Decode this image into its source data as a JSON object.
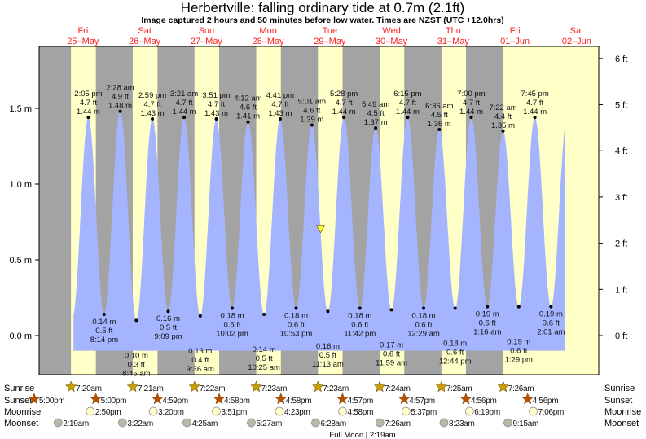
{
  "chart_data": {
    "type": "area",
    "title": "Herbertville: falling  ordinary tide at 0.7m (2.1ft)",
    "subtitle": "Image captured 2 hours and 50 minutes before low water. Times are NZST (UTC +12.0hrs)",
    "days": [
      {
        "name": "Fri",
        "date": "25–May"
      },
      {
        "name": "Sat",
        "date": "26–May"
      },
      {
        "name": "Sun",
        "date": "27–May"
      },
      {
        "name": "Mon",
        "date": "28–May"
      },
      {
        "name": "Tue",
        "date": "29–May"
      },
      {
        "name": "Wed",
        "date": "30–May"
      },
      {
        "name": "Thu",
        "date": "31–May"
      },
      {
        "name": "Fri",
        "date": "01–Jun"
      },
      {
        "name": "Sat",
        "date": "02–Jun"
      }
    ],
    "y_left": {
      "unit": "m",
      "ticks": [
        "0.0 m",
        "0.5 m",
        "1.0 m",
        "1.5 m"
      ],
      "values": [
        0,
        0.5,
        1.0,
        1.5
      ]
    },
    "y_right": {
      "unit": "ft",
      "ticks": [
        "0 ft",
        "1 ft",
        "2 ft",
        "3 ft",
        "4 ft",
        "5 ft",
        "6 ft"
      ],
      "values": [
        0,
        1,
        2,
        3,
        4,
        5,
        6
      ]
    },
    "current": {
      "day": 4,
      "time": "8:23 am",
      "height_m": 0.7,
      "height_ft": 2.1,
      "state": "falling"
    },
    "extremes": [
      {
        "day": 0,
        "type": "high",
        "time": "2:05 pm",
        "ft": "4.7 ft",
        "m": "1.44 m",
        "value": 1.44
      },
      {
        "day": 0,
        "type": "low",
        "time": "8:14 pm",
        "ft": "0.5 ft",
        "m": "0.14 m",
        "value": 0.14
      },
      {
        "day": 1,
        "type": "high",
        "time": "2:28 am",
        "ft": "4.9 ft",
        "m": "1.48 m",
        "value": 1.48
      },
      {
        "day": 1,
        "type": "low",
        "time": "8:45 am",
        "ft": "0.3 ft",
        "m": "0.10 m",
        "value": 0.1
      },
      {
        "day": 1,
        "type": "high",
        "time": "2:59 pm",
        "ft": "4.7 ft",
        "m": "1.43 m",
        "value": 1.43
      },
      {
        "day": 1,
        "type": "low",
        "time": "9:09 pm",
        "ft": "0.5 ft",
        "m": "0.16 m",
        "value": 0.16
      },
      {
        "day": 2,
        "type": "high",
        "time": "3:21 am",
        "ft": "4.7 ft",
        "m": "1.44 m",
        "value": 1.44
      },
      {
        "day": 2,
        "type": "low",
        "time": "9:36 am",
        "ft": "0.4 ft",
        "m": "0.13 m",
        "value": 0.13
      },
      {
        "day": 2,
        "type": "high",
        "time": "3:51 pm",
        "ft": "4.7 ft",
        "m": "1.43 m",
        "value": 1.43
      },
      {
        "day": 2,
        "type": "low",
        "time": "10:02 pm",
        "ft": "0.6 ft",
        "m": "0.18 m",
        "value": 0.18
      },
      {
        "day": 3,
        "type": "high",
        "time": "4:12 am",
        "ft": "4.6 ft",
        "m": "1.41 m",
        "value": 1.41
      },
      {
        "day": 3,
        "type": "low",
        "time": "10:25 am",
        "ft": "0.5 ft",
        "m": "0.14 m",
        "value": 0.14
      },
      {
        "day": 3,
        "type": "high",
        "time": "4:41 pm",
        "ft": "4.7 ft",
        "m": "1.43 m",
        "value": 1.43
      },
      {
        "day": 3,
        "type": "low",
        "time": "10:53 pm",
        "ft": "0.6 ft",
        "m": "0.18 m",
        "value": 0.18
      },
      {
        "day": 4,
        "type": "high",
        "time": "5:01 am",
        "ft": "4.6 ft",
        "m": "1.39 m",
        "value": 1.39
      },
      {
        "day": 4,
        "type": "low",
        "time": "11:13 am",
        "ft": "0.5 ft",
        "m": "0.16 m",
        "value": 0.16
      },
      {
        "day": 4,
        "type": "high",
        "time": "5:28 pm",
        "ft": "4.7 ft",
        "m": "1.44 m",
        "value": 1.44
      },
      {
        "day": 4,
        "type": "low",
        "time": "11:42 pm",
        "ft": "0.6 ft",
        "m": "0.18 m",
        "value": 0.18
      },
      {
        "day": 5,
        "type": "high",
        "time": "5:49 am",
        "ft": "4.5 ft",
        "m": "1.37 m",
        "value": 1.37
      },
      {
        "day": 5,
        "type": "low",
        "time": "11:59 am",
        "ft": "0.6 ft",
        "m": "0.17 m",
        "value": 0.17
      },
      {
        "day": 5,
        "type": "high",
        "time": "6:15 pm",
        "ft": "4.7 ft",
        "m": "1.44 m",
        "value": 1.44
      },
      {
        "day": 6,
        "type": "low",
        "time": "12:29 am",
        "ft": "0.6 ft",
        "m": "0.18 m",
        "value": 0.18
      },
      {
        "day": 6,
        "type": "high",
        "time": "6:36 am",
        "ft": "4.5 ft",
        "m": "1.36 m",
        "value": 1.36
      },
      {
        "day": 6,
        "type": "low",
        "time": "12:44 pm",
        "ft": "0.6 ft",
        "m": "0.18 m",
        "value": 0.18
      },
      {
        "day": 6,
        "type": "high",
        "time": "7:00 pm",
        "ft": "4.7 ft",
        "m": "1.44 m",
        "value": 1.44
      },
      {
        "day": 7,
        "type": "low",
        "time": "1:16 am",
        "ft": "0.6 ft",
        "m": "0.19 m",
        "value": 0.19
      },
      {
        "day": 7,
        "type": "high",
        "time": "7:22 am",
        "ft": "4.4 ft",
        "m": "1.35 m",
        "value": 1.35
      },
      {
        "day": 7,
        "type": "low",
        "time": "1:29 pm",
        "ft": "0.6 ft",
        "m": "0.19 m",
        "value": 0.19
      },
      {
        "day": 7,
        "type": "high",
        "time": "7:45 pm",
        "ft": "4.7 ft",
        "m": "1.44 m",
        "value": 1.44
      },
      {
        "day": 8,
        "type": "low",
        "time": "2:01 am",
        "ft": "0.6 ft",
        "m": "0.19 m",
        "value": 0.19
      }
    ],
    "rows": {
      "sunrise_label": "Sunrise",
      "sunset_label": "Sunset",
      "moonrise_label": "Moonrise",
      "moonset_label": "Moonset",
      "sunrise": [
        {
          "day": 0,
          "time": "7:20am"
        },
        {
          "day": 1,
          "time": "7:21am"
        },
        {
          "day": 2,
          "time": "7:22am"
        },
        {
          "day": 3,
          "time": "7:23am"
        },
        {
          "day": 4,
          "time": "7:23am"
        },
        {
          "day": 5,
          "time": "7:24am"
        },
        {
          "day": 6,
          "time": "7:25am"
        },
        {
          "day": 7,
          "time": "7:26am"
        }
      ],
      "sunset": [
        {
          "day": -1,
          "time": "5:00pm"
        },
        {
          "day": 0,
          "time": "5:00pm"
        },
        {
          "day": 1,
          "time": "4:59pm"
        },
        {
          "day": 2,
          "time": "4:58pm"
        },
        {
          "day": 3,
          "time": "4:58pm"
        },
        {
          "day": 4,
          "time": "4:57pm"
        },
        {
          "day": 5,
          "time": "4:57pm"
        },
        {
          "day": 6,
          "time": "4:56pm"
        },
        {
          "day": 7,
          "time": "4:56pm"
        }
      ],
      "moonrise": [
        {
          "day": 0,
          "time": "2:50pm"
        },
        {
          "day": 1,
          "time": "3:20pm"
        },
        {
          "day": 2,
          "time": "3:51pm"
        },
        {
          "day": 3,
          "time": "4:23pm"
        },
        {
          "day": 4,
          "time": "4:58pm"
        },
        {
          "day": 5,
          "time": "5:37pm"
        },
        {
          "day": 6,
          "time": "6:19pm"
        },
        {
          "day": 7,
          "time": "7:06pm"
        }
      ],
      "moonset": [
        {
          "day": 0,
          "time": "2:19am"
        },
        {
          "day": 1,
          "time": "3:22am"
        },
        {
          "day": 2,
          "time": "4:25am"
        },
        {
          "day": 3,
          "time": "5:27am"
        },
        {
          "day": 4,
          "time": "6:28am"
        },
        {
          "day": 5,
          "time": "7:26am"
        },
        {
          "day": 6,
          "time": "8:23am"
        },
        {
          "day": 7,
          "time": "9:15am"
        }
      ],
      "moon_phase": "Full Moon | 2:19am"
    },
    "colors": {
      "night": "#a3a3a3",
      "day": "#ffffc8",
      "tide": "#a4b4ff",
      "day_label": "#ff2020",
      "sunrise_icon": "#c8a000",
      "sunset_icon": "#b85000",
      "moonrise_icon": "#ffffcc",
      "moonset_icon": "#b8b8a8",
      "marker": "#ffff30"
    }
  }
}
